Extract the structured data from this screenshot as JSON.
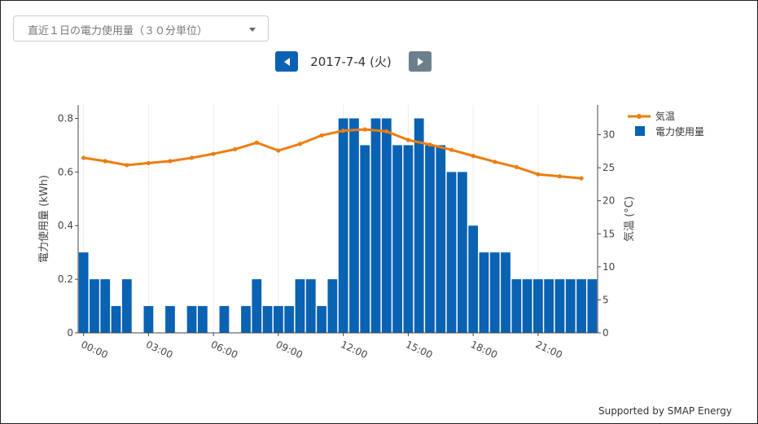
{
  "dropdown": {
    "selected": "直近１日の電力使用量（３０分単位）"
  },
  "nav": {
    "date": "2017-7-4 (火)"
  },
  "footer": {
    "text": "Supported by SMAP Energy"
  },
  "colors": {
    "bar": "#0a62b3",
    "line": "#ed7d0e",
    "prev_button": "#0a62b3",
    "next_button": "#6d7f8c"
  },
  "chart_data": {
    "type": "bar",
    "ylabel": "電力使用量 (kWh)",
    "y2label": "気温 (°C)",
    "ylim": [
      0,
      0.85
    ],
    "y2lim": [
      0,
      34.5
    ],
    "yticks": [
      0,
      0.2,
      0.4,
      0.6,
      0.8
    ],
    "yticklabels": [
      "0",
      "0.2",
      "0.4",
      "0.6",
      "0.8"
    ],
    "y2ticks": [
      0,
      5,
      10,
      15,
      20,
      25,
      30
    ],
    "y2ticklabels": [
      "0",
      "5",
      "10",
      "15",
      "20",
      "25",
      "30"
    ],
    "xlim": [
      -0.25,
      23.75
    ],
    "xticks": [
      0,
      3,
      6,
      9,
      12,
      15,
      18,
      21
    ],
    "xticklabels": [
      "00:00",
      "03:00",
      "06:00",
      "09:00",
      "12:00",
      "15:00",
      "18:00",
      "21:00"
    ],
    "legend_position": "top-right",
    "grid": "vertical",
    "series": [
      {
        "name": "電力使用量",
        "type": "bar",
        "axis": "left",
        "color": "#0a62b3",
        "x": [
          0,
          0.5,
          1,
          1.5,
          2,
          2.5,
          3,
          3.5,
          4,
          4.5,
          5,
          5.5,
          6,
          6.5,
          7,
          7.5,
          8,
          8.5,
          9,
          9.5,
          10,
          10.5,
          11,
          11.5,
          12,
          12.5,
          13,
          13.5,
          14,
          14.5,
          15,
          15.5,
          16,
          16.5,
          17,
          17.5,
          18,
          18.5,
          19,
          19.5,
          20,
          20.5,
          21,
          21.5,
          22,
          22.5,
          23,
          23.5
        ],
        "values": [
          0.3,
          0.2,
          0.2,
          0.1,
          0.2,
          0,
          0.1,
          0,
          0.1,
          0,
          0.1,
          0.1,
          0,
          0.1,
          0,
          0.1,
          0.2,
          0.1,
          0.1,
          0.1,
          0.2,
          0.2,
          0.1,
          0.2,
          0.8,
          0.8,
          0.7,
          0.8,
          0.8,
          0.7,
          0.7,
          0.8,
          0.7,
          0.7,
          0.6,
          0.6,
          0.4,
          0.3,
          0.3,
          0.3,
          0.2,
          0.2,
          0.2,
          0.2,
          0.2,
          0.2,
          0.2,
          0.2
        ]
      },
      {
        "name": "気温",
        "type": "line",
        "axis": "right",
        "color": "#ed7d0e",
        "x": [
          0,
          1,
          2,
          3,
          4,
          5,
          6,
          7,
          8,
          9,
          10,
          11,
          12,
          13,
          14,
          15,
          16,
          17,
          18,
          19,
          20,
          21,
          22,
          23
        ],
        "values": [
          26.5,
          26.0,
          25.4,
          25.7,
          26.0,
          26.5,
          27.1,
          27.8,
          28.8,
          27.6,
          28.6,
          29.9,
          30.6,
          30.8,
          30.5,
          29.2,
          28.5,
          27.7,
          26.8,
          25.9,
          25.1,
          24.0,
          23.7,
          23.4
        ]
      }
    ]
  }
}
